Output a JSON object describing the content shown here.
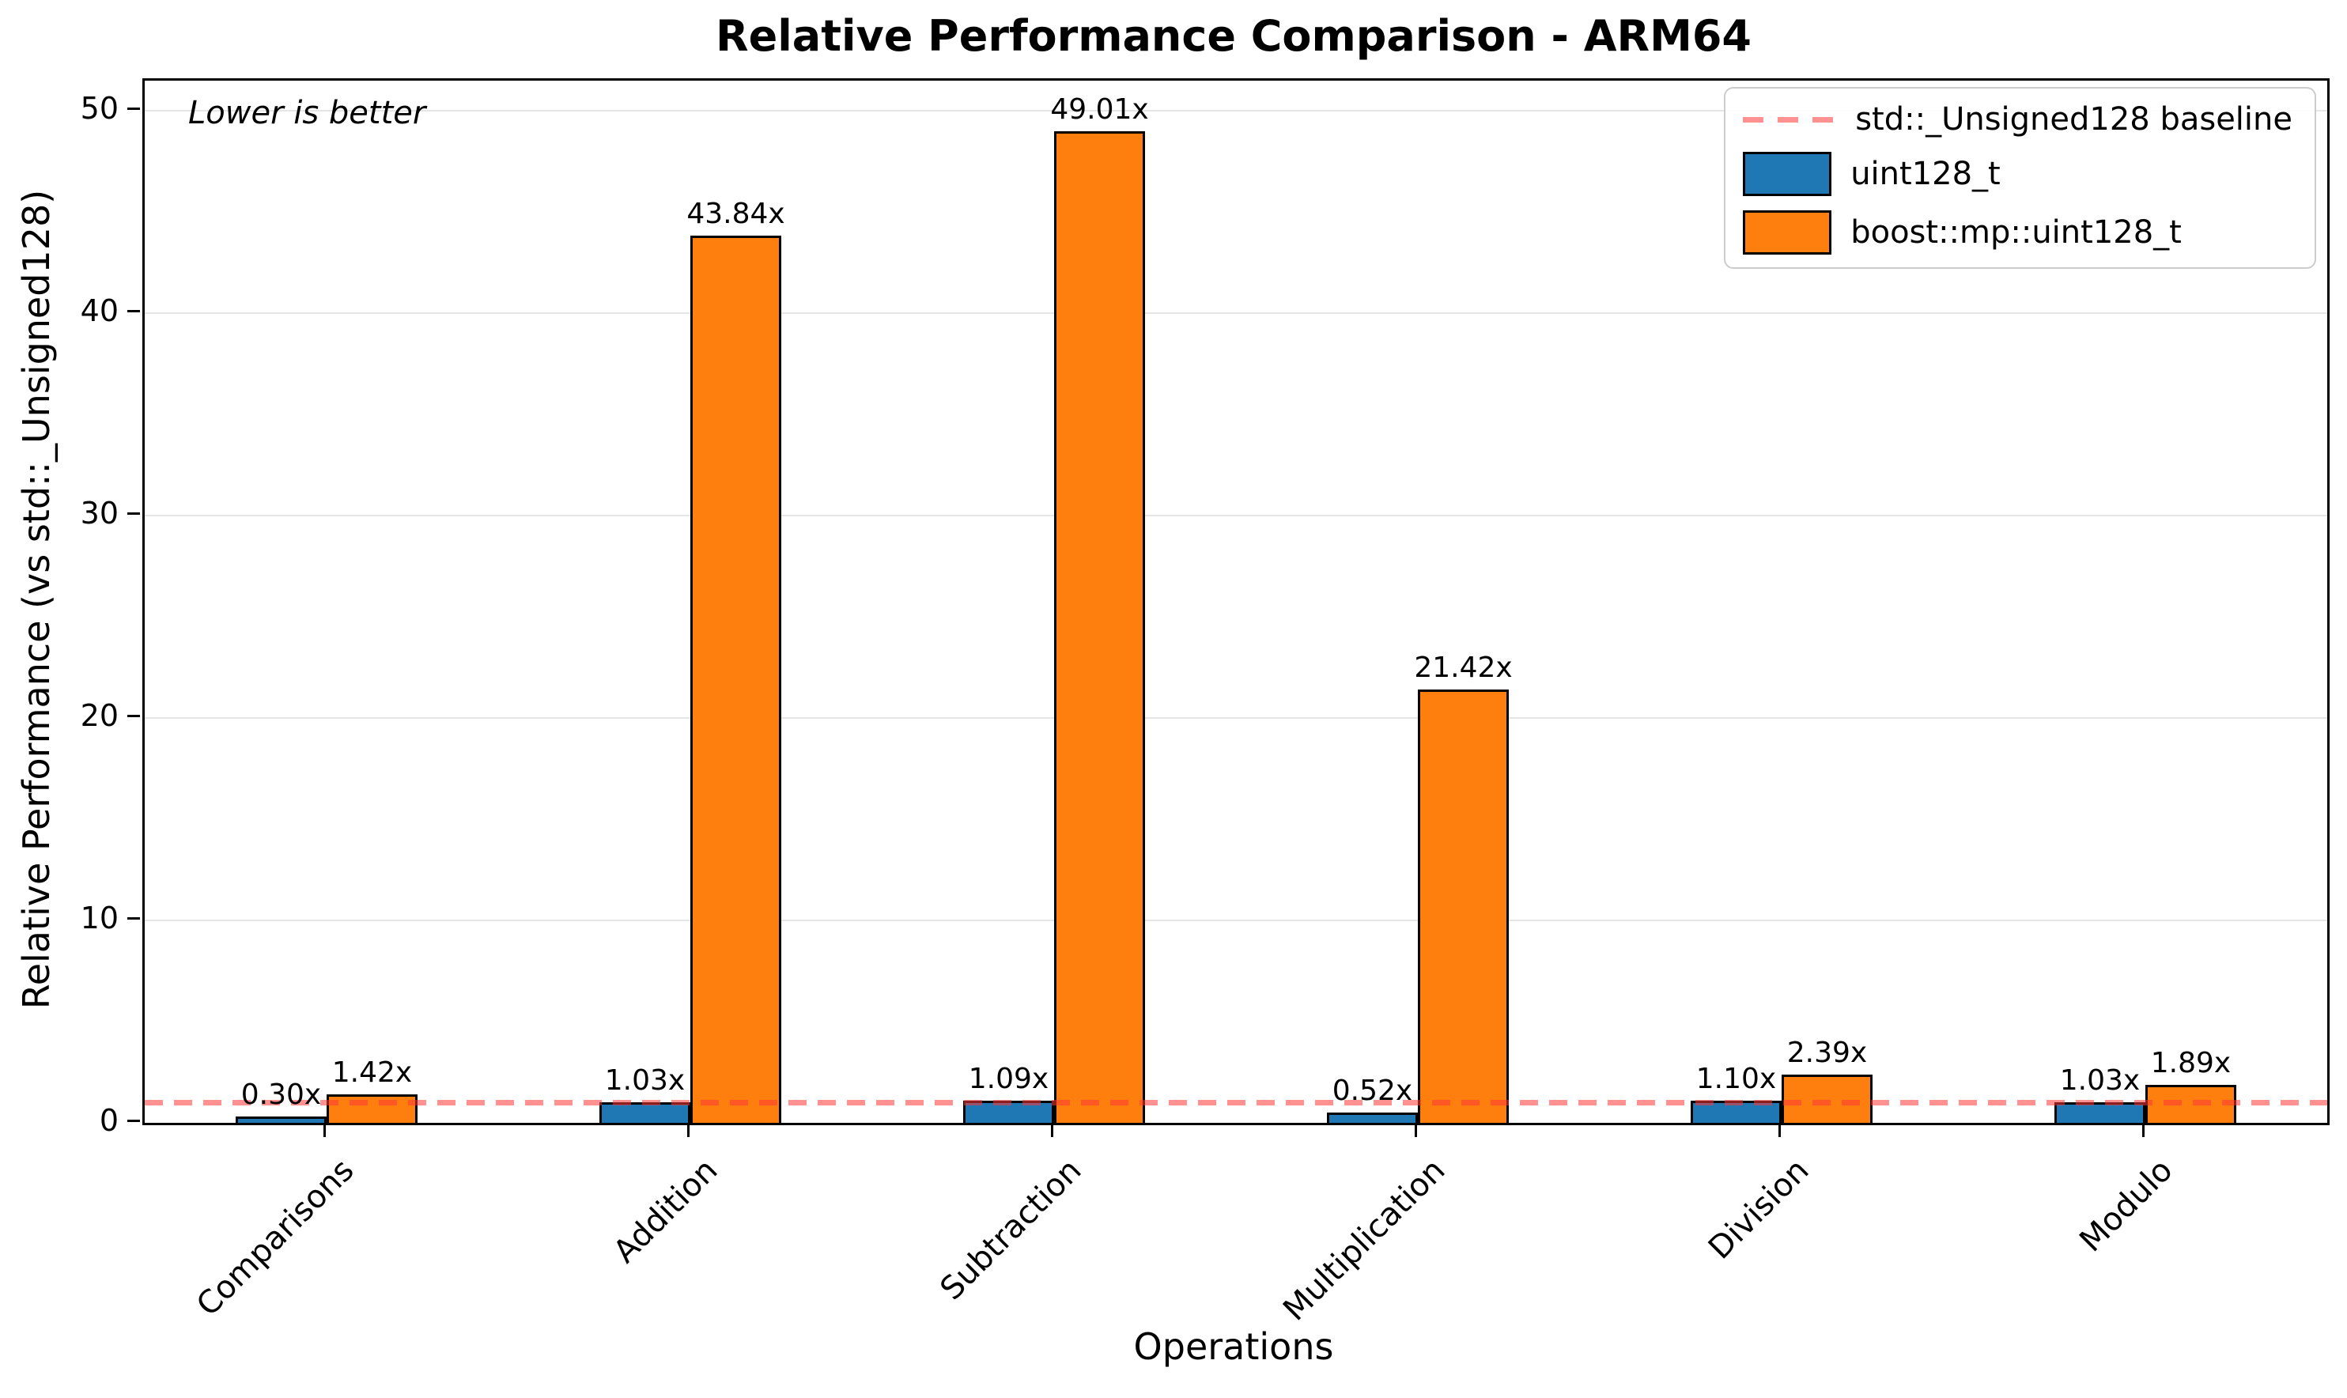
{
  "title": "Relative Performance Comparison - ARM64",
  "annotation": "Lower is better",
  "axes": {
    "xlabel": "Operations",
    "ylabel": "Relative Performance (vs std::_Unsigned128)",
    "yticks": [
      0,
      10,
      20,
      30,
      40,
      50
    ],
    "ymax": 51.5
  },
  "legend": {
    "baseline_label": "std::_Unsigned128 baseline",
    "series1_label": "uint128_t",
    "series2_label": "boost::mp::uint128_t"
  },
  "colors": {
    "series1": "#1f77b4",
    "series2": "#ff7f0e",
    "baseline": "rgba(255,55,55,0.55)",
    "grid": "#e6e6e6"
  },
  "chart_data": {
    "type": "bar",
    "title": "Relative Performance Comparison - ARM64",
    "xlabel": "Operations",
    "ylabel": "Relative Performance (vs std::_Unsigned128)",
    "ylim": [
      0,
      51.5
    ],
    "grid": true,
    "legend_position": "upper right",
    "categories": [
      "Comparisons",
      "Addition",
      "Subtraction",
      "Multiplication",
      "Division",
      "Modulo"
    ],
    "series": [
      {
        "name": "uint128_t",
        "color": "#1f77b4",
        "values": [
          0.3,
          1.03,
          1.09,
          0.52,
          1.1,
          1.03
        ],
        "labels": [
          "0.30x",
          "1.03x",
          "1.09x",
          "0.52x",
          "1.10x",
          "1.03x"
        ]
      },
      {
        "name": "boost::mp::uint128_t",
        "color": "#ff7f0e",
        "values": [
          1.42,
          43.84,
          49.01,
          21.42,
          2.39,
          1.89
        ],
        "labels": [
          "1.42x",
          "43.84x",
          "49.01x",
          "21.42x",
          "2.39x",
          "1.89x"
        ]
      }
    ],
    "baseline": {
      "label": "std::_Unsigned128 baseline",
      "value": 1
    }
  }
}
